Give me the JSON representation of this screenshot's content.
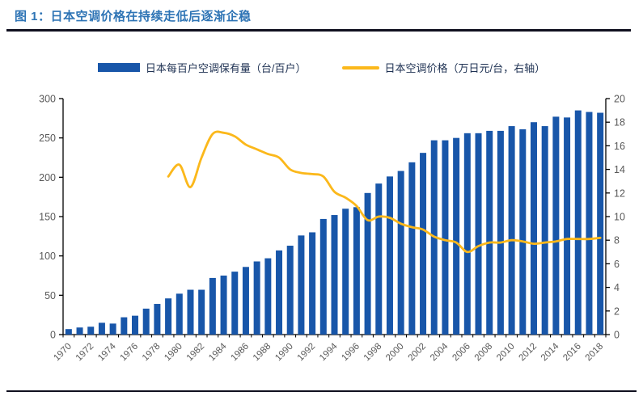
{
  "figure": {
    "title": "图 1：日本空调价格在持续走低后逐渐企稳"
  },
  "colors": {
    "bar": "#1856A9",
    "line": "#FBB81B",
    "title": "#2E74B5",
    "legend_text": "#203354",
    "axis_text": "#595959",
    "axis_line": "#000000",
    "rule": "#10101F"
  },
  "chart_data": {
    "type": "bar",
    "subtype": "bar+line dual-axis combo",
    "categories": [
      1970,
      1971,
      1972,
      1973,
      1974,
      1975,
      1976,
      1977,
      1978,
      1979,
      1980,
      1981,
      1982,
      1983,
      1984,
      1985,
      1986,
      1987,
      1988,
      1989,
      1990,
      1991,
      1992,
      1993,
      1994,
      1995,
      1996,
      1997,
      1998,
      1999,
      2000,
      2001,
      2002,
      2003,
      2004,
      2005,
      2006,
      2007,
      2008,
      2009,
      2010,
      2011,
      2012,
      2013,
      2014,
      2015,
      2016,
      2017,
      2018
    ],
    "x_tick_labels": [
      "1970",
      "1972",
      "1974",
      "1976",
      "1978",
      "1980",
      "1982",
      "1984",
      "1986",
      "1988",
      "1990",
      "1992",
      "1994",
      "1996",
      "1998",
      "2000",
      "2002",
      "2004",
      "2006",
      "2008",
      "2010",
      "2012",
      "2014",
      "2016",
      "2018"
    ],
    "series": [
      {
        "name": "日本每百户空调保有量（台/百户）",
        "type": "bar",
        "axis": "left",
        "values": [
          7,
          9,
          10,
          15,
          14,
          22,
          24,
          33,
          39,
          46,
          52,
          57,
          57,
          72,
          75,
          80,
          86,
          93,
          97,
          107,
          113,
          126,
          130,
          147,
          152,
          160,
          162,
          180,
          192,
          201,
          208,
          219,
          231,
          247,
          247,
          250,
          256,
          256,
          259,
          259,
          265,
          261,
          270,
          265,
          277,
          276,
          285,
          283,
          282
        ]
      },
      {
        "name": "日本空调价格（万日元/台，右轴）",
        "type": "line",
        "axis": "right",
        "values": [
          null,
          null,
          null,
          null,
          null,
          null,
          null,
          null,
          null,
          13.4,
          14.4,
          12.5,
          15.0,
          17.0,
          17.1,
          16.8,
          16.1,
          15.7,
          15.3,
          15.0,
          14.0,
          13.7,
          13.6,
          13.4,
          12.1,
          11.6,
          10.9,
          9.7,
          10.0,
          9.9,
          9.4,
          9.1,
          8.9,
          8.3,
          8.0,
          7.8,
          7.0,
          7.5,
          7.8,
          7.8,
          8.0,
          7.9,
          7.7,
          7.8,
          7.9,
          8.1,
          8.1,
          8.1,
          8.2
        ]
      }
    ],
    "left_axis": {
      "min": 0,
      "max": 300,
      "step": 50,
      "ticks": [
        "0",
        "50",
        "100",
        "150",
        "200",
        "250",
        "300"
      ]
    },
    "right_axis": {
      "min": 0,
      "max": 20,
      "step": 2,
      "ticks": [
        "0",
        "2",
        "4",
        "6",
        "8",
        "10",
        "12",
        "14",
        "16",
        "18",
        "20"
      ]
    },
    "legend_position": "top-center",
    "grid": false,
    "title": "",
    "xlabel": "",
    "ylabel": ""
  }
}
